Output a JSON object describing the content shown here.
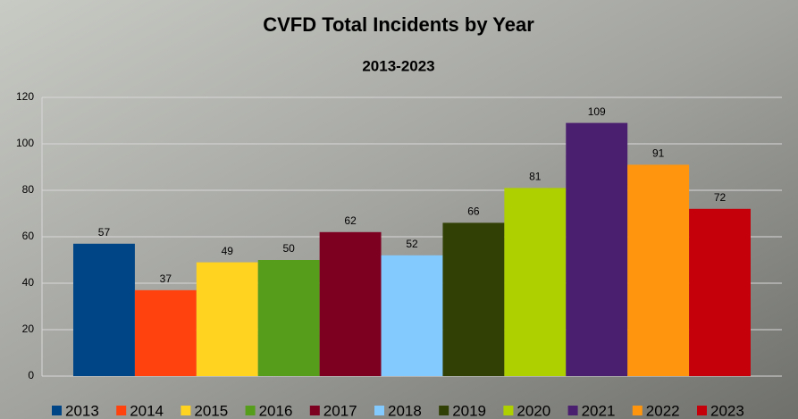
{
  "chart_data": {
    "type": "bar",
    "title": "CVFD Total Incidents by Year",
    "subtitle": "2013-2023",
    "categories": [
      "2013",
      "2014",
      "2015",
      "2016",
      "2017",
      "2018",
      "2019",
      "2020",
      "2021",
      "2022",
      "2023"
    ],
    "values": [
      57,
      37,
      49,
      50,
      62,
      52,
      66,
      81,
      109,
      91,
      72
    ],
    "colors": [
      "#004586",
      "#ff420e",
      "#ffd320",
      "#579d1c",
      "#7e0021",
      "#83caff",
      "#314004",
      "#aecf00",
      "#4b1f6f",
      "#ff950e",
      "#c5000b"
    ],
    "ylim": [
      0,
      120
    ],
    "yticks": [
      0,
      20,
      40,
      60,
      80,
      100,
      120
    ],
    "grid": true,
    "legend": "bottom"
  }
}
